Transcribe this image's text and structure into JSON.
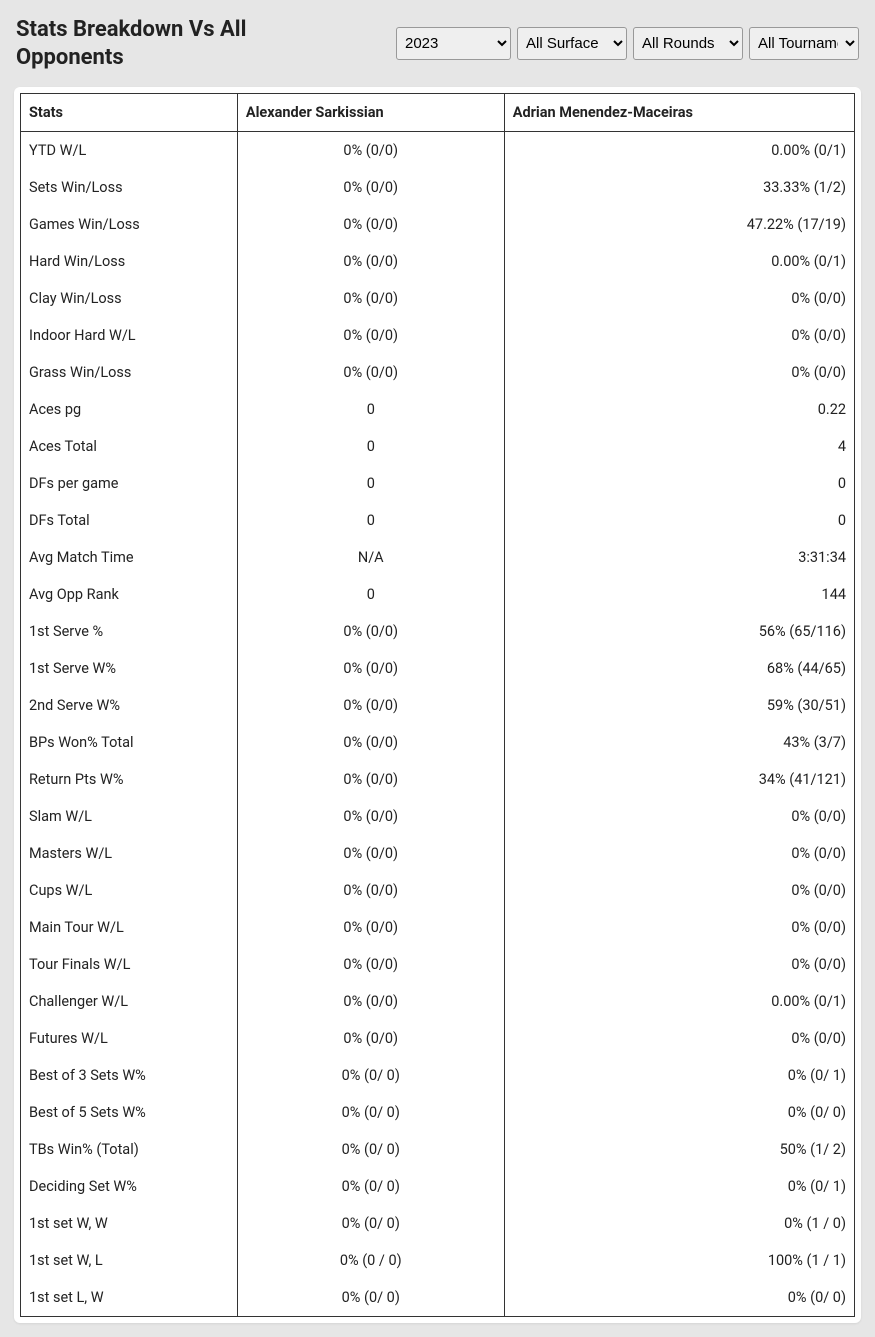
{
  "header": {
    "title": "Stats Breakdown Vs All Opponents"
  },
  "filters": {
    "year": {
      "selected": "2023",
      "options": [
        "2023"
      ]
    },
    "surface": {
      "selected": "All Surface",
      "options": [
        "All Surface"
      ]
    },
    "round": {
      "selected": "All Rounds",
      "options": [
        "All Rounds"
      ]
    },
    "tournament": {
      "selected": "All Tournament",
      "options": [
        "All Tournament"
      ]
    }
  },
  "table": {
    "columns": {
      "stat": "Stats",
      "playerA": "Alexander Sarkissian",
      "playerB": "Adrian Menendez-Maceiras"
    },
    "rows": [
      {
        "stat": "YTD W/L",
        "a": "0% (0/0)",
        "b": "0.00% (0/1)"
      },
      {
        "stat": "Sets Win/Loss",
        "a": "0% (0/0)",
        "b": "33.33% (1/2)"
      },
      {
        "stat": "Games Win/Loss",
        "a": "0% (0/0)",
        "b": "47.22% (17/19)"
      },
      {
        "stat": "Hard Win/Loss",
        "a": "0% (0/0)",
        "b": "0.00% (0/1)"
      },
      {
        "stat": "Clay Win/Loss",
        "a": "0% (0/0)",
        "b": "0% (0/0)"
      },
      {
        "stat": "Indoor Hard W/L",
        "a": "0% (0/0)",
        "b": "0% (0/0)"
      },
      {
        "stat": "Grass Win/Loss",
        "a": "0% (0/0)",
        "b": "0% (0/0)"
      },
      {
        "stat": "Aces pg",
        "a": "0",
        "b": "0.22"
      },
      {
        "stat": "Aces Total",
        "a": "0",
        "b": "4"
      },
      {
        "stat": "DFs per game",
        "a": "0",
        "b": "0"
      },
      {
        "stat": "DFs Total",
        "a": "0",
        "b": "0"
      },
      {
        "stat": "Avg Match Time",
        "a": "N/A",
        "b": "3:31:34"
      },
      {
        "stat": "Avg Opp Rank",
        "a": "0",
        "b": "144"
      },
      {
        "stat": "1st Serve %",
        "a": "0% (0/0)",
        "b": "56% (65/116)"
      },
      {
        "stat": "1st Serve W%",
        "a": "0% (0/0)",
        "b": "68% (44/65)"
      },
      {
        "stat": "2nd Serve W%",
        "a": "0% (0/0)",
        "b": "59% (30/51)"
      },
      {
        "stat": "BPs Won% Total",
        "a": "0% (0/0)",
        "b": "43% (3/7)"
      },
      {
        "stat": "Return Pts W%",
        "a": "0% (0/0)",
        "b": "34% (41/121)"
      },
      {
        "stat": "Slam W/L",
        "a": "0% (0/0)",
        "b": "0% (0/0)"
      },
      {
        "stat": "Masters W/L",
        "a": "0% (0/0)",
        "b": "0% (0/0)"
      },
      {
        "stat": "Cups W/L",
        "a": "0% (0/0)",
        "b": "0% (0/0)"
      },
      {
        "stat": "Main Tour W/L",
        "a": "0% (0/0)",
        "b": "0% (0/0)"
      },
      {
        "stat": "Tour Finals W/L",
        "a": "0% (0/0)",
        "b": "0% (0/0)"
      },
      {
        "stat": "Challenger W/L",
        "a": "0% (0/0)",
        "b": "0.00% (0/1)"
      },
      {
        "stat": "Futures W/L",
        "a": "0% (0/0)",
        "b": "0% (0/0)"
      },
      {
        "stat": "Best of 3 Sets W%",
        "a": "0% (0/ 0)",
        "b": "0% (0/ 1)"
      },
      {
        "stat": "Best of 5 Sets W%",
        "a": "0% (0/ 0)",
        "b": "0% (0/ 0)"
      },
      {
        "stat": "TBs Win% (Total)",
        "a": "0% (0/ 0)",
        "b": "50% (1/ 2)"
      },
      {
        "stat": "Deciding Set W%",
        "a": "0% (0/ 0)",
        "b": "0% (0/ 1)"
      },
      {
        "stat": "1st set W, W",
        "a": "0% (0/ 0)",
        "b": "0% (1 / 0)"
      },
      {
        "stat": "1st set W, L",
        "a": "0% (0 / 0)",
        "b": "100% (1 / 1)"
      },
      {
        "stat": "1st set L, W",
        "a": "0% (0/ 0)",
        "b": "0% (0/ 0)"
      }
    ]
  }
}
